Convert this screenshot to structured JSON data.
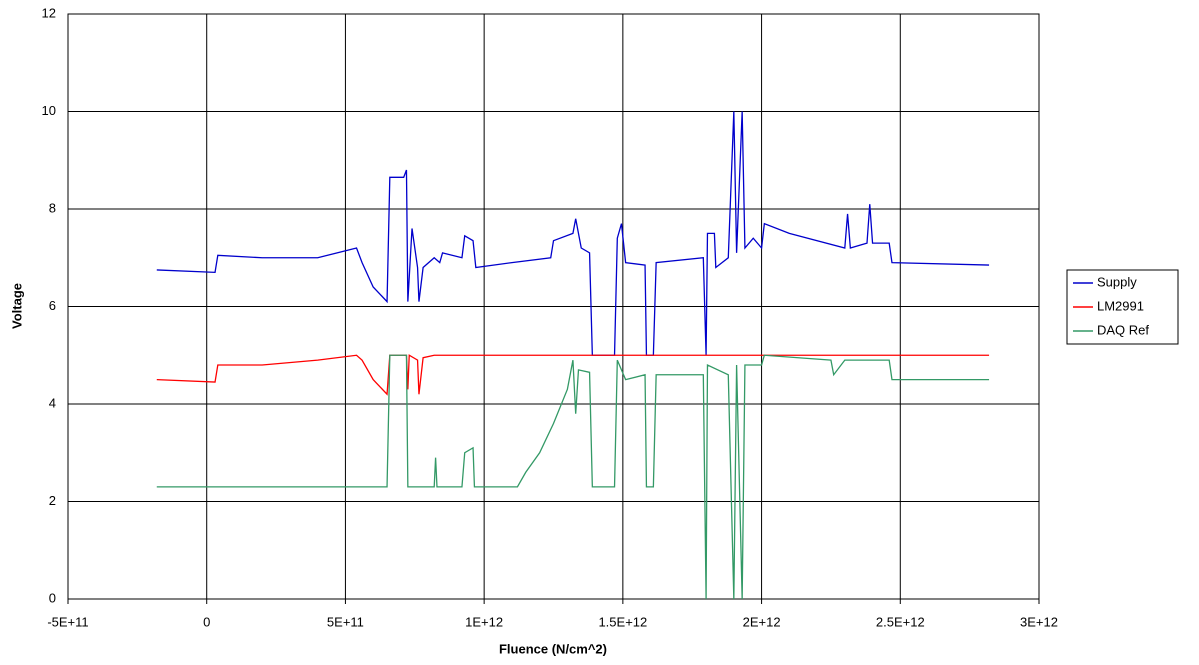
{
  "chart_data": {
    "type": "line",
    "xlabel": "Fluence (N/cm^2)",
    "ylabel": "Voltage",
    "xlim": [
      -500000000000.0,
      3000000000000.0
    ],
    "ylim": [
      0,
      12
    ],
    "xticks": [
      {
        "value": -500000000000.0,
        "label": "-5E+11"
      },
      0,
      {
        "value": 500000000000.0,
        "label": "5E+11"
      },
      {
        "value": 1000000000000.0,
        "label": "1E+12"
      },
      {
        "value": 1500000000000.0,
        "label": "1.5E+12"
      },
      {
        "value": 2000000000000.0,
        "label": "2E+12"
      },
      {
        "value": 2500000000000.0,
        "label": "2.5E+12"
      },
      {
        "value": 3000000000000.0,
        "label": "3E+12"
      }
    ],
    "yticks": [
      0,
      2,
      4,
      6,
      8,
      10,
      12
    ],
    "grid": true,
    "legend": "right",
    "series": [
      {
        "name": "Supply",
        "color": "#0000cc",
        "x": [
          -180000000000.0,
          30000000000.0,
          40000000000.0,
          200000000000.0,
          400000000000.0,
          540000000000.0,
          560000000000.0,
          600000000000.0,
          650000000000.0,
          660000000000.0,
          710000000000.0,
          720000000000.0,
          725000000000.0,
          740000000000.0,
          760000000000.0,
          765000000000.0,
          780000000000.0,
          820000000000.0,
          840000000000.0,
          850000000000.0,
          920000000000.0,
          930000000000.0,
          960000000000.0,
          970000000000.0,
          1100000000000.0,
          1240000000000.0,
          1250000000000.0,
          1320000000000.0,
          1330000000000.0,
          1350000000000.0,
          1380000000000.0,
          1390000000000.0,
          1470000000000.0,
          1480000000000.0,
          1495000000000.0,
          1510000000000.0,
          1580000000000.0,
          1585000000000.0,
          1610000000000.0,
          1620000000000.0,
          1790000000000.0,
          1800000000000.0,
          1805000000000.0,
          1830000000000.0,
          1835000000000.0,
          1880000000000.0,
          1900000000000.0,
          1910000000000.0,
          1930000000000.0,
          1940000000000.0,
          1970000000000.0,
          2000000000000.0,
          2010000000000.0,
          2100000000000.0,
          2300000000000.0,
          2310000000000.0,
          2320000000000.0,
          2380000000000.0,
          2390000000000.0,
          2400000000000.0,
          2460000000000.0,
          2470000000000.0,
          2820000000000.0
        ],
        "values": [
          6.75,
          6.7,
          7.05,
          7.0,
          7.0,
          7.2,
          6.9,
          6.4,
          6.1,
          8.65,
          8.65,
          8.8,
          6.1,
          7.6,
          6.8,
          6.1,
          6.8,
          7.0,
          6.9,
          7.1,
          7.0,
          7.45,
          7.35,
          6.8,
          6.9,
          7.0,
          7.35,
          7.5,
          7.8,
          7.2,
          7.1,
          5.0,
          5.0,
          7.4,
          7.7,
          6.9,
          6.85,
          5.0,
          5.0,
          6.9,
          7.0,
          5.0,
          7.5,
          7.5,
          6.8,
          7.0,
          10,
          7.1,
          10,
          7.2,
          7.4,
          7.2,
          7.7,
          7.5,
          7.2,
          7.9,
          7.2,
          7.3,
          8.1,
          7.3,
          7.3,
          6.9,
          6.85
        ]
      },
      {
        "name": "LM2991",
        "color": "#ff0000",
        "x": [
          -180000000000.0,
          30000000000.0,
          40000000000.0,
          200000000000.0,
          400000000000.0,
          540000000000.0,
          560000000000.0,
          600000000000.0,
          650000000000.0,
          660000000000.0,
          720000000000.0,
          725000000000.0,
          730000000000.0,
          760000000000.0,
          765000000000.0,
          780000000000.0,
          820000000000.0,
          2820000000000.0
        ],
        "values": [
          4.5,
          4.45,
          4.8,
          4.8,
          4.9,
          5.0,
          4.9,
          4.5,
          4.2,
          5.0,
          5.0,
          4.3,
          5.0,
          4.9,
          4.2,
          4.95,
          5.0,
          5.0
        ]
      },
      {
        "name": "DAQ Ref",
        "color": "#339966",
        "x": [
          -180000000000.0,
          650000000000.0,
          660000000000.0,
          720000000000.0,
          725000000000.0,
          820000000000.0,
          825000000000.0,
          830000000000.0,
          920000000000.0,
          930000000000.0,
          960000000000.0,
          965000000000.0,
          1120000000000.0,
          1150000000000.0,
          1200000000000.0,
          1250000000000.0,
          1300000000000.0,
          1320000000000.0,
          1330000000000.0,
          1340000000000.0,
          1380000000000.0,
          1390000000000.0,
          1470000000000.0,
          1480000000000.0,
          1510000000000.0,
          1580000000000.0,
          1585000000000.0,
          1610000000000.0,
          1620000000000.0,
          1790000000000.0,
          1800000000000.0,
          1805000000000.0,
          1880000000000.0,
          1900000000000.0,
          1910000000000.0,
          1930000000000.0,
          1940000000000.0,
          2000000000000.0,
          2010000000000.0,
          2250000000000.0,
          2260000000000.0,
          2300000000000.0,
          2460000000000.0,
          2470000000000.0,
          2820000000000.0
        ],
        "values": [
          2.3,
          2.3,
          5.0,
          5.0,
          2.3,
          2.3,
          2.9,
          2.3,
          2.3,
          3.0,
          3.1,
          2.3,
          2.3,
          2.6,
          3.0,
          3.6,
          4.3,
          4.9,
          3.8,
          4.7,
          4.65,
          2.3,
          2.3,
          4.9,
          4.5,
          4.6,
          2.3,
          2.3,
          4.6,
          4.6,
          0,
          4.8,
          4.6,
          0,
          4.8,
          0,
          4.8,
          4.8,
          5.0,
          4.9,
          4.6,
          4.9,
          4.9,
          4.5,
          4.5
        ]
      }
    ]
  }
}
